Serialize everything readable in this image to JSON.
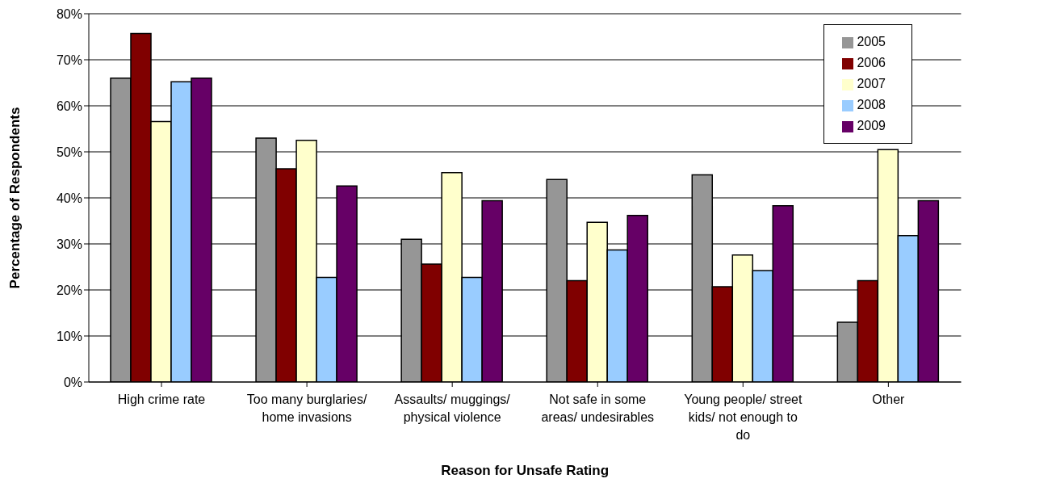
{
  "chart_data": {
    "type": "bar",
    "xlabel": "Reason for Unsafe Rating",
    "ylabel": "Percentage of Respondents",
    "categories": [
      "High crime rate",
      "Too many burglaries/ home invasions",
      "Assaults/ muggings/ physical violence",
      "Not safe in some areas/ undesirables",
      "Young people/ street kids/ not enough to do",
      "Other"
    ],
    "series": [
      {
        "name": "2005",
        "color": "#969696",
        "values": [
          66,
          53,
          31,
          44,
          45,
          13
        ]
      },
      {
        "name": "2006",
        "color": "#800000",
        "values": [
          75.7,
          46.3,
          25.6,
          22,
          20.7,
          22
        ]
      },
      {
        "name": "2007",
        "color": "#ffffcc",
        "values": [
          56.6,
          52.5,
          45.5,
          34.7,
          27.6,
          50.5
        ]
      },
      {
        "name": "2008",
        "color": "#99ccff",
        "values": [
          65.2,
          22.7,
          22.7,
          28.7,
          24.2,
          31.8
        ]
      },
      {
        "name": "2009",
        "color": "#660066",
        "values": [
          66,
          42.6,
          39.4,
          36.2,
          38.3,
          39.4
        ]
      }
    ],
    "ylim": [
      0,
      80
    ],
    "yticks": [
      {
        "value": 0,
        "label": "0%"
      },
      {
        "value": 10,
        "label": "10%"
      },
      {
        "value": 20,
        "label": "20%"
      },
      {
        "value": 30,
        "label": "30%"
      },
      {
        "value": 40,
        "label": "40%"
      },
      {
        "value": 50,
        "label": "50%"
      },
      {
        "value": 60,
        "label": "60%"
      },
      {
        "value": 70,
        "label": "70%"
      },
      {
        "value": 80,
        "label": "80%"
      }
    ],
    "grid": "y",
    "legend": "top right"
  }
}
